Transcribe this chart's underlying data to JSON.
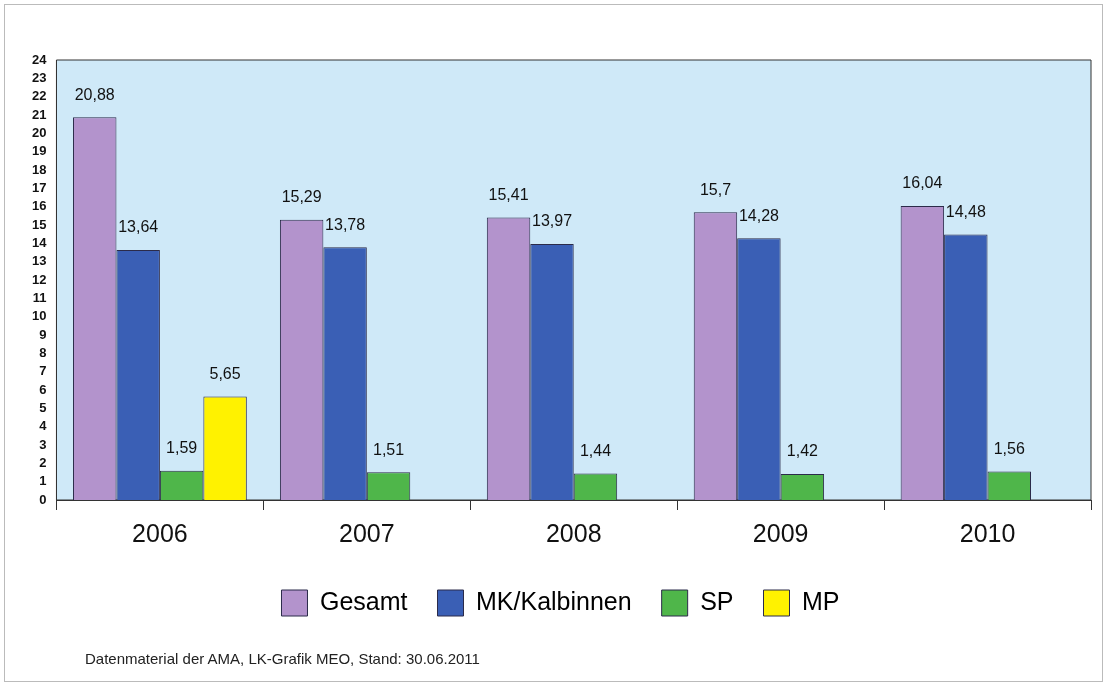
{
  "chart_data": {
    "type": "bar",
    "categories": [
      "2006",
      "2007",
      "2008",
      "2009",
      "2010"
    ],
    "series": [
      {
        "name": "Gesamt",
        "color": "#b393cc",
        "values": [
          20.88,
          15.29,
          15.41,
          15.7,
          16.04
        ],
        "value_labels": [
          "20,88",
          "15,29",
          "15,41",
          "15,7",
          "16,04"
        ]
      },
      {
        "name": "MK/Kalbinnen",
        "color": "#3a5fb5",
        "values": [
          13.64,
          13.78,
          13.97,
          14.28,
          14.48
        ],
        "value_labels": [
          "13,64",
          "13,78",
          "13,97",
          "14,28",
          "14,48"
        ]
      },
      {
        "name": "SP",
        "color": "#4fb64a",
        "values": [
          1.59,
          1.51,
          1.44,
          1.42,
          1.56
        ],
        "value_labels": [
          "1,59",
          "1,51",
          "1,44",
          "1,42",
          "1,56"
        ]
      },
      {
        "name": "MP",
        "color": "#fff200",
        "values": [
          5.65,
          null,
          null,
          null,
          null
        ],
        "value_labels": [
          "5,65",
          null,
          null,
          null,
          null
        ]
      }
    ],
    "ylim": [
      0,
      24
    ],
    "yticks": [
      0,
      1,
      2,
      3,
      4,
      5,
      6,
      7,
      8,
      9,
      10,
      11,
      12,
      13,
      14,
      15,
      16,
      17,
      18,
      19,
      20,
      21,
      22,
      23,
      24
    ],
    "grid": false,
    "legend": "bottom",
    "annotations": [
      "Datenmaterial der AMA, LK-Grafik MEO, Stand: 30.06.2011"
    ]
  }
}
